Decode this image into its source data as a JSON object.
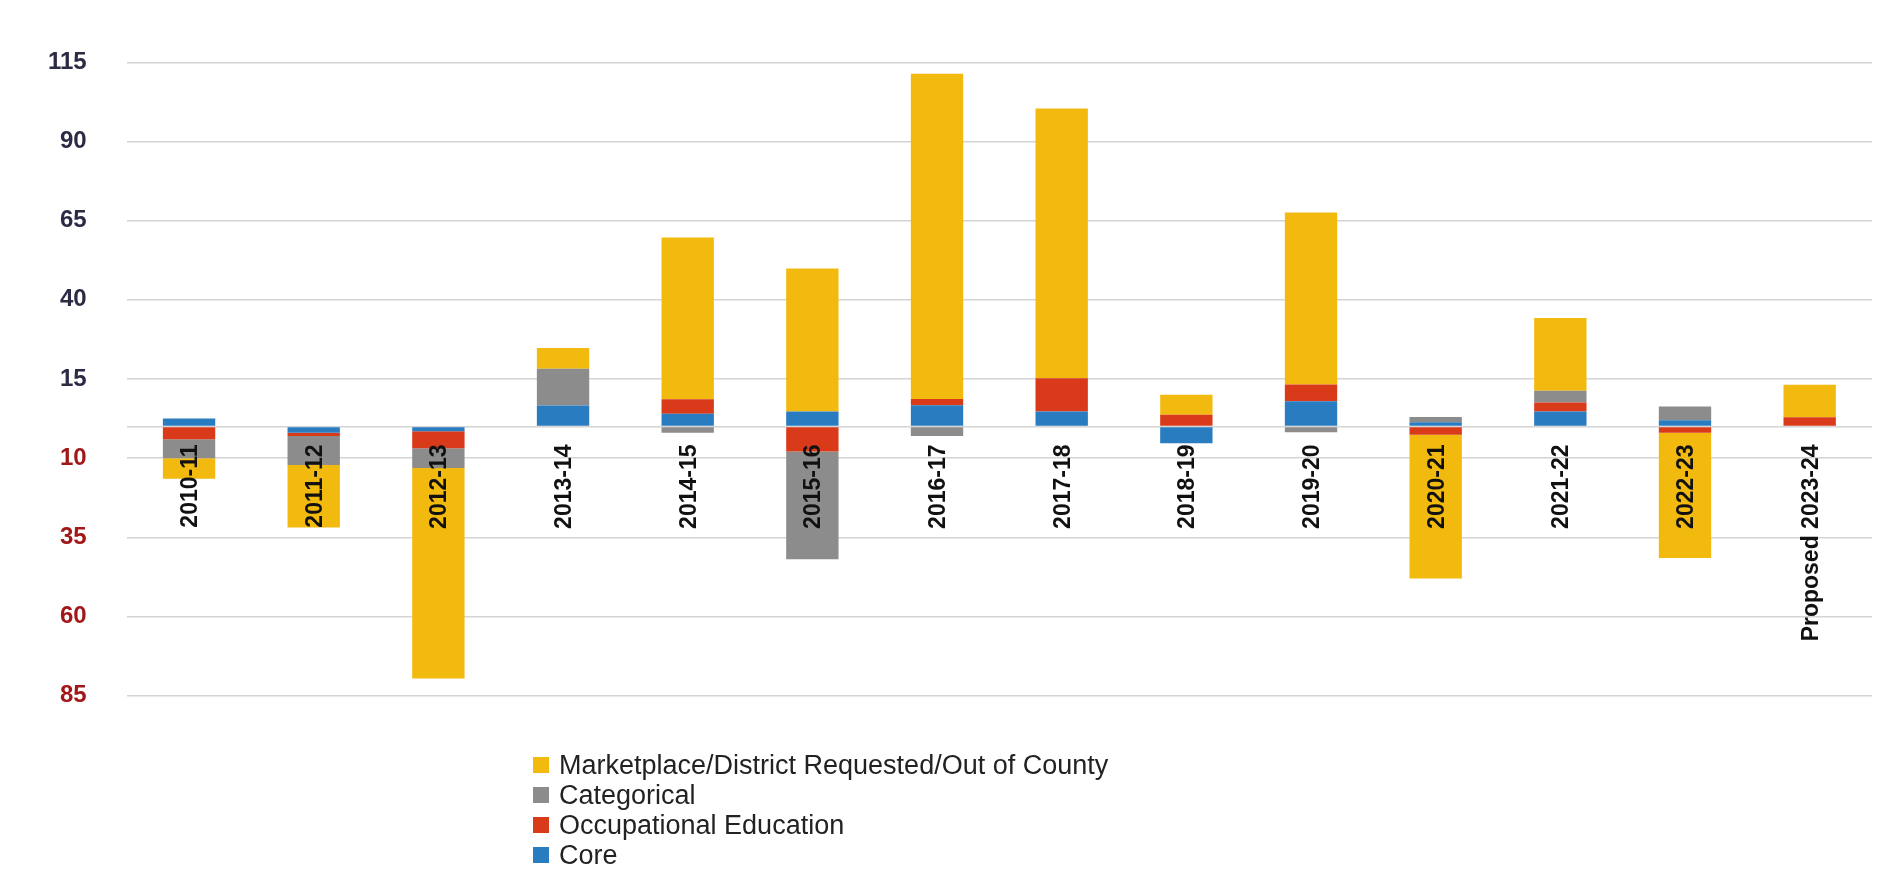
{
  "chart_data": {
    "type": "bar",
    "stacked": true,
    "categories": [
      "2010-11",
      "2011-12",
      "2012-13",
      "2013-14",
      "2014-15",
      "2015-16",
      "2016-17",
      "2017-18",
      "2018-19",
      "2019-20",
      "2020-21",
      "2021-22",
      "2022-23",
      "Proposed 2023-24"
    ],
    "series": [
      {
        "name": "Core",
        "color": "#2a7cc0",
        "values": [
          2.5,
          -2,
          -1.5,
          6.6,
          4,
          4.7,
          6.7,
          4.7,
          -5.3,
          8,
          1.3,
          4.7,
          2,
          0
        ]
      },
      {
        "name": "Occupational Education",
        "color": "#d93a1a",
        "values": [
          -4,
          -1,
          -5.4,
          0,
          4.6,
          -7.9,
          2,
          10.5,
          3.7,
          5.3,
          -2.6,
          2.9,
          -2,
          2.9
        ]
      },
      {
        "name": "Categorical",
        "color": "#8c8c8c",
        "values": [
          -6,
          -9.2,
          -6.2,
          11.6,
          -2,
          -34,
          -3,
          0,
          0,
          -1.8,
          1.7,
          3.7,
          4.3,
          0
        ]
      },
      {
        "name": "Marketplace/District Requested/Out of County",
        "color": "#f2b90f",
        "values": [
          -6.5,
          -19.7,
          -66.5,
          6.6,
          51.1,
          45.2,
          102.7,
          85.2,
          6.3,
          54.3,
          -45.4,
          23,
          -39.5,
          10.3
        ]
      }
    ],
    "ylim": [
      -85,
      115
    ],
    "yticks": [
      115,
      90,
      65,
      40,
      15,
      {
        "value": 0,
        "label": null
      },
      {
        "value": -10,
        "label": "10"
      },
      {
        "value": -35,
        "label": "35"
      },
      {
        "value": -60,
        "label": "60"
      },
      {
        "value": -85,
        "label": "85"
      }
    ],
    "grid": "y",
    "legend": "bottom"
  }
}
